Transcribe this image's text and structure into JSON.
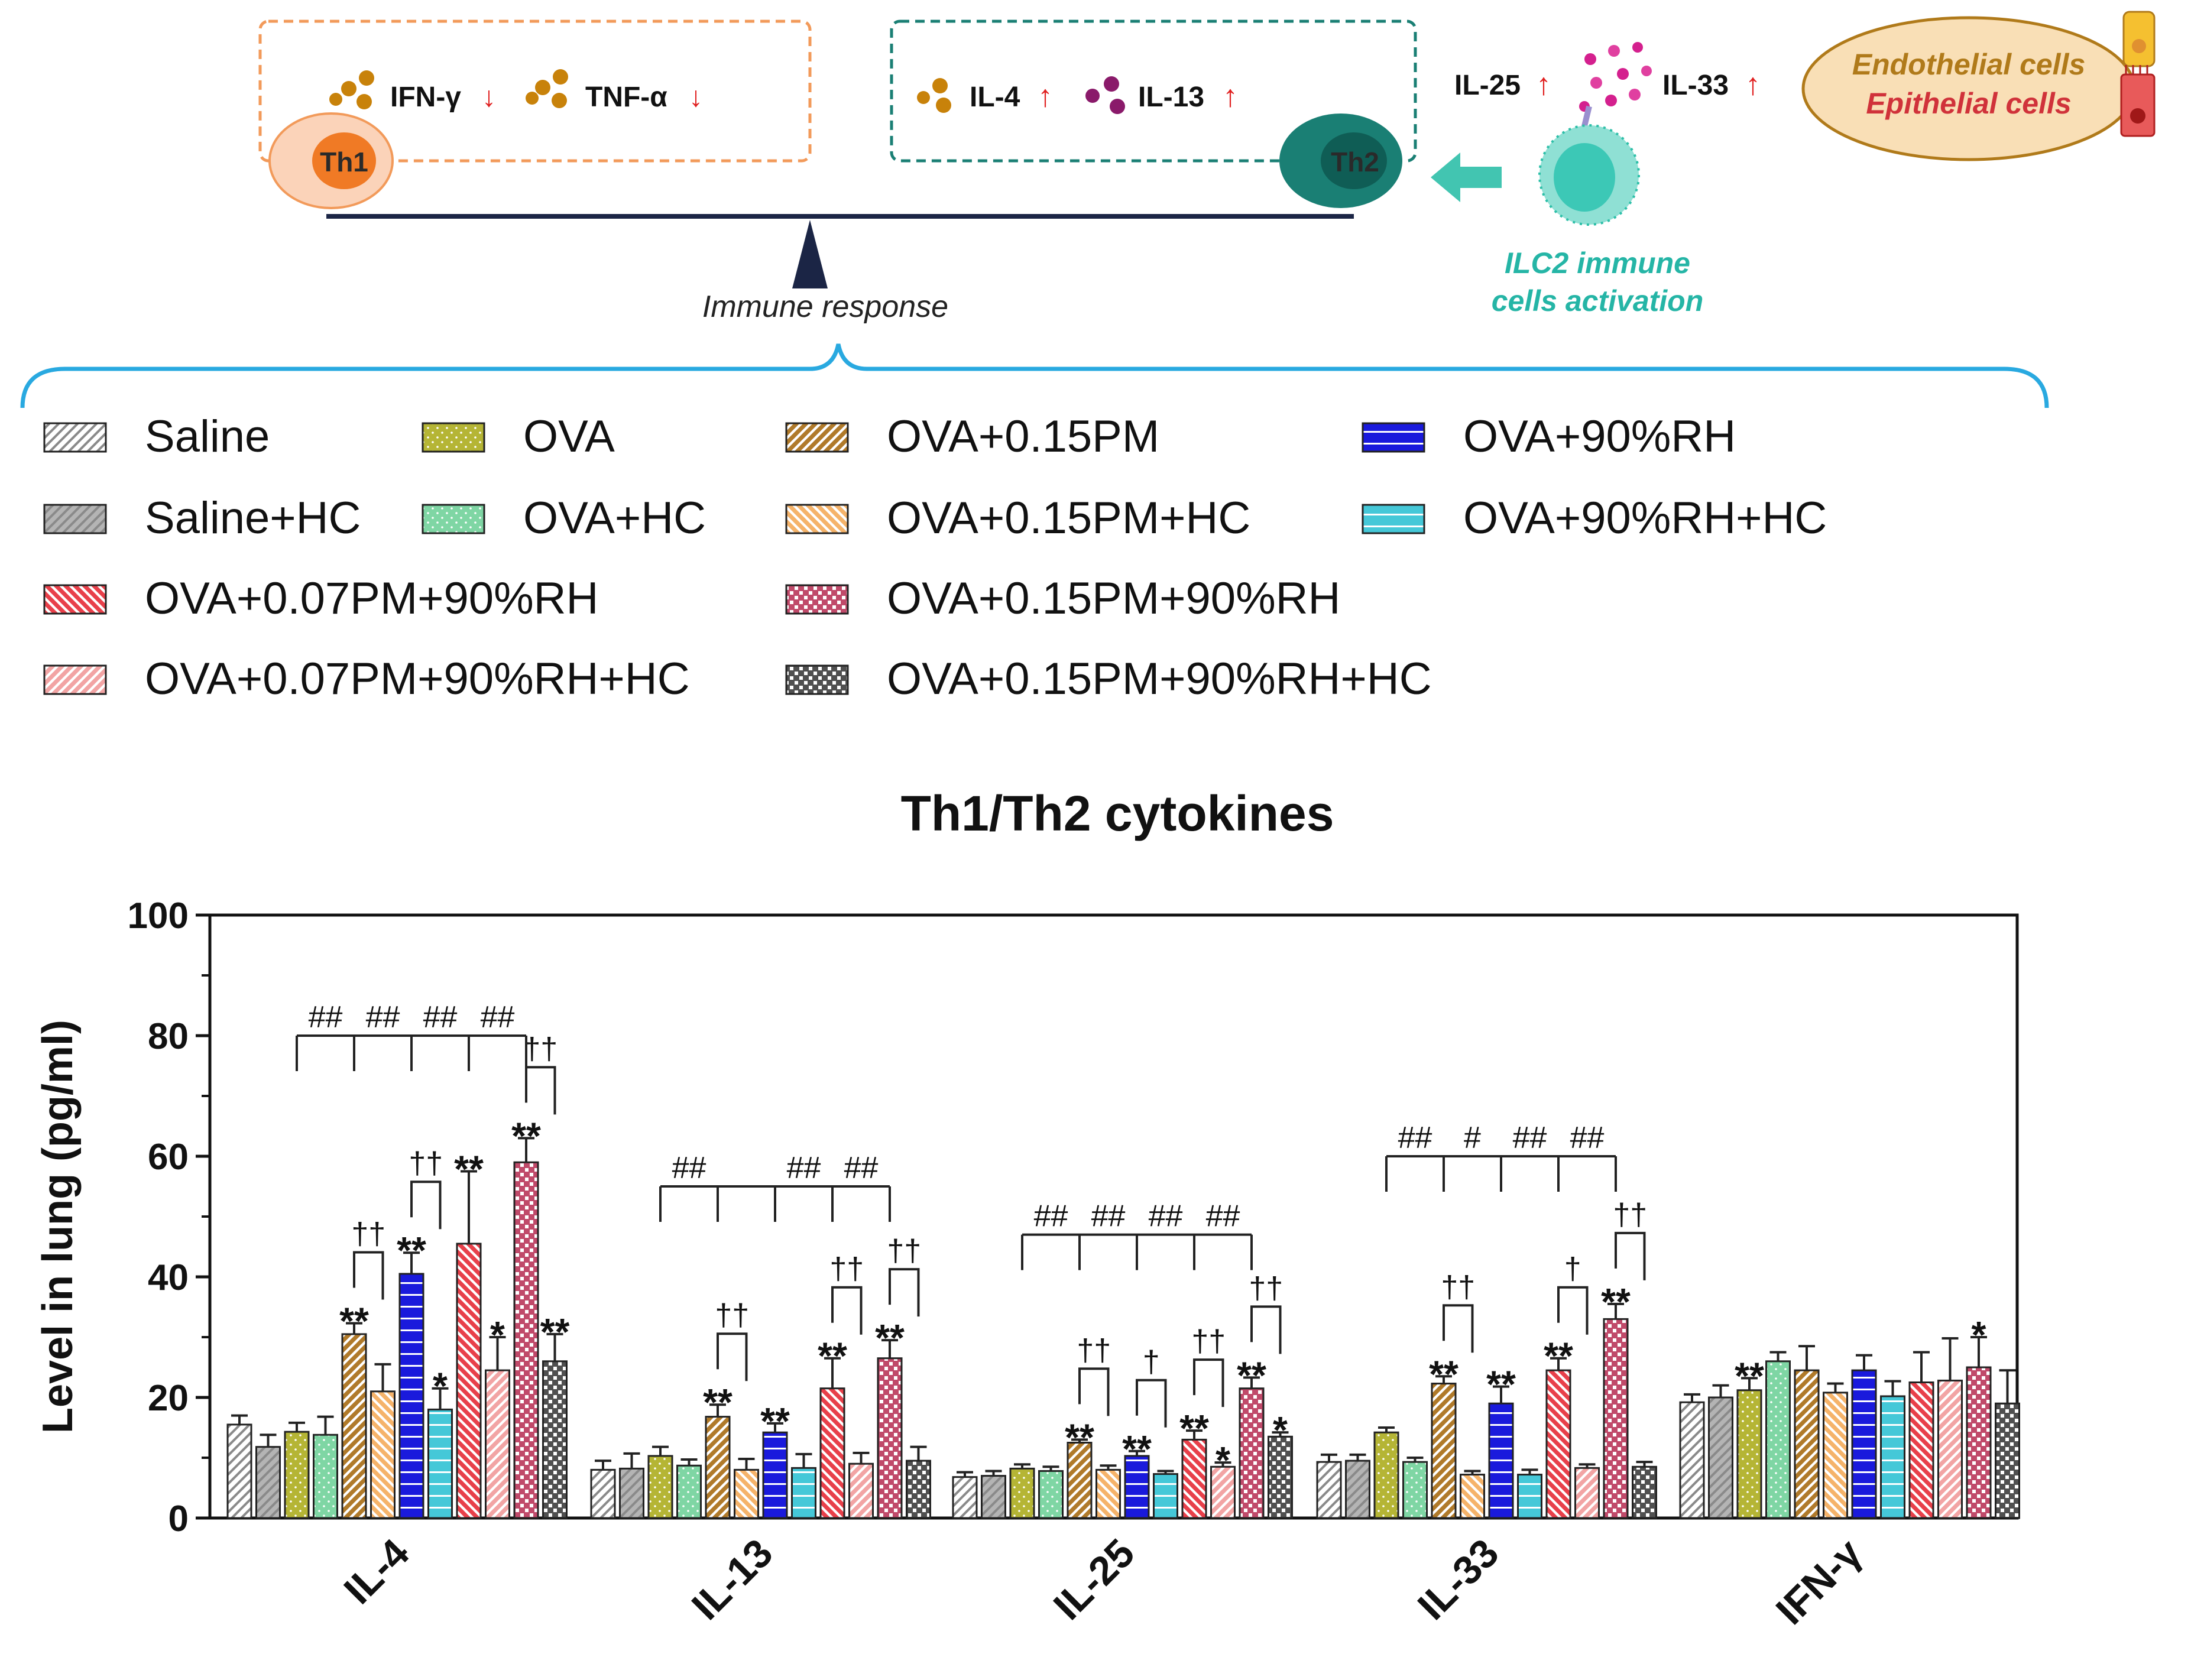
{
  "diagram": {
    "th1": {
      "label": "Th1",
      "cytokines": [
        {
          "name": "IFN-γ",
          "arrow": "↓"
        },
        {
          "name": "TNF-α",
          "arrow": "↓"
        }
      ]
    },
    "th2": {
      "label": "Th2",
      "cytokines": [
        {
          "name": "IL-4",
          "arrow": "↑"
        },
        {
          "name": "IL-13",
          "arrow": "↑"
        }
      ]
    },
    "balance_label": "Immune response",
    "alarmins": [
      {
        "name": "IL-25",
        "arrow": "↑"
      },
      {
        "name": "IL-33",
        "arrow": "↑"
      }
    ],
    "ilc2_label_line1": "ILC2 immune",
    "ilc2_label_line2": "cells activation",
    "source_line1": "Endothelial cells",
    "source_line2": "Epithelial cells",
    "colors": {
      "th1_border": "#f29a5a",
      "th2_border": "#1a7f74",
      "ilc2_text": "#25b5a6",
      "brace": "#29a9e0",
      "up_arrow": "#e02020",
      "source_brown": "#b07a1a",
      "source_red": "#d0323a"
    }
  },
  "legend": [
    {
      "label": "Saline",
      "color": "#ffffff",
      "pattern": "hatch-grey"
    },
    {
      "label": "Saline+HC",
      "color": "#b4b4b4",
      "pattern": "hatch-grey"
    },
    {
      "label": "OVA+0.07PM+90%RH",
      "color": "#e8404a",
      "pattern": "diag-rev"
    },
    {
      "label": "OVA+0.07PM+90%RH+HC",
      "color": "#f2a4a4",
      "pattern": "diag"
    },
    {
      "label": "OVA",
      "color": "#b5b535",
      "pattern": "dots"
    },
    {
      "label": "OVA+HC",
      "color": "#7fd6a4",
      "pattern": "dots"
    },
    {
      "label": "OVA+0.15PM",
      "color": "#b07a2a",
      "pattern": "diag"
    },
    {
      "label": "OVA+0.15PM+HC",
      "color": "#f5b36a",
      "pattern": "diag-rev"
    },
    {
      "label": "OVA+0.15PM+90%RH",
      "color": "#c04a6a",
      "pattern": "checker"
    },
    {
      "label": "OVA+0.15PM+90%RH+HC",
      "color": "#505050",
      "pattern": "checker"
    },
    {
      "label": "OVA+90%RH",
      "color": "#1a1adc",
      "pattern": "hlines"
    },
    {
      "label": "OVA+90%RH+HC",
      "color": "#45c8d8",
      "pattern": "hlines"
    }
  ],
  "chart_data": {
    "type": "bar",
    "title": "Th1/Th2 cytokines",
    "ylabel": "Level in lung (pg/ml)",
    "xlabel": "",
    "ylim": [
      0,
      100
    ],
    "yticks": [
      "0",
      "20",
      "40",
      "60",
      "80",
      "100"
    ],
    "categories": [
      "IL-4",
      "IL-13",
      "IL-25",
      "IL-33",
      "IFN-γ"
    ],
    "series": [
      {
        "name": "Saline",
        "values": [
          15.5,
          8.0,
          6.8,
          9.3,
          19.2
        ],
        "errors": [
          1.5,
          1.5,
          0.8,
          1.2,
          1.3
        ]
      },
      {
        "name": "Saline+HC",
        "values": [
          11.8,
          8.2,
          7.0,
          9.5,
          20.0
        ],
        "errors": [
          2.0,
          2.5,
          0.8,
          1.0,
          2.0
        ]
      },
      {
        "name": "OVA",
        "values": [
          14.3,
          10.3,
          8.2,
          14.2,
          21.2
        ],
        "errors": [
          1.5,
          1.5,
          0.7,
          0.8,
          2.0
        ]
      },
      {
        "name": "OVA+HC",
        "values": [
          13.8,
          8.7,
          7.8,
          9.3,
          26.0
        ],
        "errors": [
          3.0,
          1.0,
          0.7,
          0.7,
          1.5
        ]
      },
      {
        "name": "OVA+0.15PM",
        "values": [
          30.5,
          16.8,
          12.5,
          22.3,
          24.5
        ],
        "errors": [
          1.8,
          2.0,
          0.5,
          1.2,
          4.0
        ]
      },
      {
        "name": "OVA+0.15PM+HC",
        "values": [
          21.0,
          8.0,
          8.0,
          7.2,
          20.8
        ],
        "errors": [
          4.5,
          1.8,
          0.7,
          0.6,
          1.5
        ]
      },
      {
        "name": "OVA+90%RH",
        "values": [
          40.5,
          14.2,
          10.3,
          19.0,
          24.5
        ],
        "errors": [
          3.5,
          1.5,
          0.8,
          2.8,
          2.5
        ]
      },
      {
        "name": "OVA+90%RH+HC",
        "values": [
          18.0,
          8.3,
          7.3,
          7.2,
          20.2
        ],
        "errors": [
          3.5,
          2.3,
          0.5,
          0.8,
          2.5
        ]
      },
      {
        "name": "OVA+0.07PM+90%RH",
        "values": [
          45.5,
          21.5,
          13.0,
          24.5,
          22.5
        ],
        "errors": [
          12.0,
          5.0,
          1.5,
          2.0,
          5.0
        ]
      },
      {
        "name": "OVA+0.07PM+90%RH+HC",
        "values": [
          24.5,
          9.0,
          8.5,
          8.3,
          22.8
        ],
        "errors": [
          5.5,
          1.8,
          0.7,
          0.6,
          7.0
        ]
      },
      {
        "name": "OVA+0.15PM+90%RH",
        "values": [
          59.0,
          26.5,
          21.5,
          33.0,
          25.0
        ],
        "errors": [
          4.0,
          3.0,
          1.8,
          2.5,
          5.0
        ]
      },
      {
        "name": "OVA+0.15PM+90%RH+HC",
        "values": [
          26.0,
          9.5,
          13.5,
          8.5,
          19.0
        ],
        "errors": [
          4.5,
          2.3,
          0.7,
          0.8,
          5.5
        ]
      }
    ],
    "significance_marks": [
      {
        "category": "IL-4",
        "series": "OVA+0.15PM",
        "mark": "**"
      },
      {
        "category": "IL-4",
        "series": "OVA+90%RH",
        "mark": "**"
      },
      {
        "category": "IL-4",
        "series": "OVA+90%RH+HC",
        "mark": "*"
      },
      {
        "category": "IL-4",
        "series": "OVA+0.07PM+90%RH",
        "mark": "**"
      },
      {
        "category": "IL-4",
        "series": "OVA+0.07PM+90%RH+HC",
        "mark": "*"
      },
      {
        "category": "IL-4",
        "series": "OVA+0.15PM+90%RH",
        "mark": "**"
      },
      {
        "category": "IL-4",
        "series": "OVA+0.15PM+90%RH+HC",
        "mark": "**"
      },
      {
        "category": "IL-13",
        "series": "OVA+0.15PM",
        "mark": "**"
      },
      {
        "category": "IL-13",
        "series": "OVA+90%RH",
        "mark": "**"
      },
      {
        "category": "IL-13",
        "series": "OVA+0.07PM+90%RH",
        "mark": "**"
      },
      {
        "category": "IL-13",
        "series": "OVA+0.15PM+90%RH",
        "mark": "**"
      },
      {
        "category": "IL-25",
        "series": "OVA+0.15PM",
        "mark": "**"
      },
      {
        "category": "IL-25",
        "series": "OVA+90%RH",
        "mark": "**"
      },
      {
        "category": "IL-25",
        "series": "OVA+0.07PM+90%RH",
        "mark": "**"
      },
      {
        "category": "IL-25",
        "series": "OVA+0.07PM+90%RH+HC",
        "mark": "*"
      },
      {
        "category": "IL-25",
        "series": "OVA+0.15PM+90%RH",
        "mark": "**"
      },
      {
        "category": "IL-25",
        "series": "OVA+0.15PM+90%RH+HC",
        "mark": "*"
      },
      {
        "category": "IL-33",
        "series": "OVA+0.15PM",
        "mark": "**"
      },
      {
        "category": "IL-33",
        "series": "OVA+90%RH",
        "mark": "**"
      },
      {
        "category": "IL-33",
        "series": "OVA+0.07PM+90%RH",
        "mark": "**"
      },
      {
        "category": "IL-33",
        "series": "OVA+0.15PM+90%RH",
        "mark": "**"
      },
      {
        "category": "IFN-γ",
        "series": "OVA",
        "mark": "**"
      },
      {
        "category": "IFN-γ",
        "series": "OVA+0.15PM+90%RH",
        "mark": "*"
      }
    ],
    "hc_pairs": [
      {
        "category": "IL-4",
        "from": "OVA+0.15PM",
        "to": "OVA+0.15PM+HC",
        "mark": "††"
      },
      {
        "category": "IL-4",
        "from": "OVA+90%RH",
        "to": "OVA+90%RH+HC",
        "mark": "††"
      },
      {
        "category": "IL-4",
        "from": "OVA+0.15PM+90%RH",
        "to": "OVA+0.15PM+90%RH+HC",
        "mark": "††"
      },
      {
        "category": "IL-13",
        "from": "OVA+0.15PM",
        "to": "OVA+0.15PM+HC",
        "mark": "††"
      },
      {
        "category": "IL-13",
        "from": "OVA+0.07PM+90%RH",
        "to": "OVA+0.07PM+90%RH+HC",
        "mark": "††"
      },
      {
        "category": "IL-13",
        "from": "OVA+0.15PM+90%RH",
        "to": "OVA+0.15PM+90%RH+HC",
        "mark": "††"
      },
      {
        "category": "IL-25",
        "from": "OVA+0.15PM",
        "to": "OVA+0.15PM+HC",
        "mark": "††"
      },
      {
        "category": "IL-25",
        "from": "OVA+90%RH",
        "to": "OVA+90%RH+HC",
        "mark": "†"
      },
      {
        "category": "IL-25",
        "from": "OVA+0.07PM+90%RH",
        "to": "OVA+0.07PM+90%RH+HC",
        "mark": "††"
      },
      {
        "category": "IL-25",
        "from": "OVA+0.15PM+90%RH",
        "to": "OVA+0.15PM+90%RH+HC",
        "mark": "††"
      },
      {
        "category": "IL-33",
        "from": "OVA+0.15PM",
        "to": "OVA+0.15PM+HC",
        "mark": "††"
      },
      {
        "category": "IL-33",
        "from": "OVA+0.07PM+90%RH",
        "to": "OVA+0.07PM+90%RH+HC",
        "mark": "†"
      },
      {
        "category": "IL-33",
        "from": "OVA+0.15PM+90%RH",
        "to": "OVA+0.15PM+90%RH+HC",
        "mark": "††"
      }
    ],
    "group_brackets": [
      {
        "category": "IL-4",
        "y": 80,
        "anchors": [
          "OVA",
          "OVA+0.15PM",
          "OVA+90%RH",
          "OVA+0.07PM+90%RH",
          "OVA+0.15PM+90%RH"
        ],
        "marks": [
          "##",
          "##",
          "##",
          "##"
        ]
      },
      {
        "category": "IL-13",
        "y": 55,
        "anchors": [
          "OVA",
          "OVA+0.15PM",
          "OVA+90%RH",
          "OVA+0.07PM+90%RH",
          "OVA+0.15PM+90%RH"
        ],
        "marks": [
          "##",
          "",
          "##",
          "##"
        ]
      },
      {
        "category": "IL-25",
        "y": 47,
        "anchors": [
          "OVA",
          "OVA+0.15PM",
          "OVA+90%RH",
          "OVA+0.07PM+90%RH",
          "OVA+0.15PM+90%RH"
        ],
        "marks": [
          "##",
          "##",
          "##",
          "##"
        ]
      },
      {
        "category": "IL-33",
        "y": 60,
        "anchors": [
          "OVA",
          "OVA+0.15PM",
          "OVA+90%RH",
          "OVA+0.07PM+90%RH",
          "OVA+0.15PM+90%RH"
        ],
        "marks": [
          "##",
          "#",
          "##",
          "##"
        ]
      }
    ]
  }
}
